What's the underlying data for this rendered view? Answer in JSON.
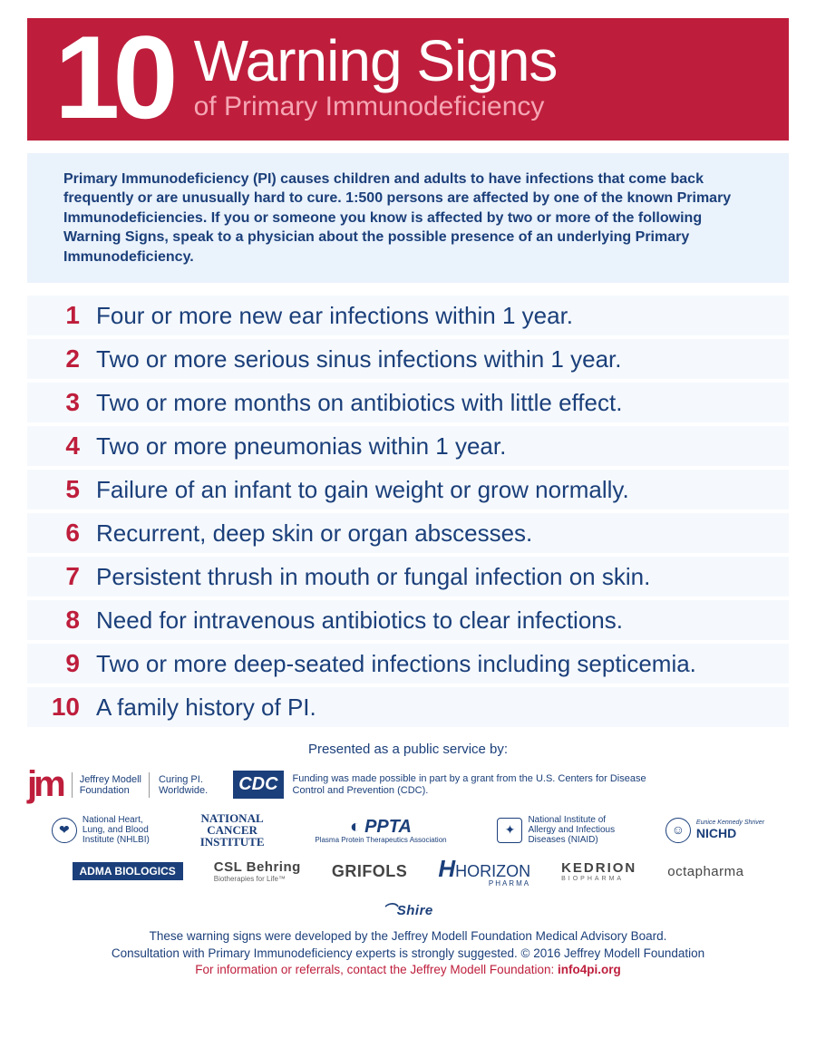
{
  "header": {
    "number": "10",
    "title": "Warning Signs",
    "subtitle": "of Primary Immunodeficiency"
  },
  "intro": "Primary Immunodeficiency (PI) causes children and adults to have infections that come back frequently or are unusually hard to cure. 1:500 persons are affected by one of the known Primary Immunodeficiencies. If you or someone you know is affected by two or more of the following Warning Signs, speak to a physician about the possible presence of an underlying Primary Immunodeficiency.",
  "items": [
    {
      "n": "1",
      "t": "Four or more new ear infections within 1 year."
    },
    {
      "n": "2",
      "t": "Two or more serious sinus infections within 1 year."
    },
    {
      "n": "3",
      "t": "Two or more months on antibiotics with little effect."
    },
    {
      "n": "4",
      "t": "Two or more pneumonias within 1 year."
    },
    {
      "n": "5",
      "t": "Failure of an infant to gain weight or grow normally."
    },
    {
      "n": "6",
      "t": "Recurrent, deep skin or organ abscesses."
    },
    {
      "n": "7",
      "t": "Persistent thrush in mouth or fungal infection on skin."
    },
    {
      "n": "8",
      "t": "Need for intravenous antibiotics to clear infections."
    },
    {
      "n": "9",
      "t": "Two or more deep-seated infections including septicemia."
    },
    {
      "n": "10",
      "t": "A family history of PI."
    }
  ],
  "footer": {
    "presented": "Presented as a public service by:",
    "jm": {
      "logo": "jm",
      "name": "Jeffrey Modell\nFoundation",
      "tag": "Curing PI.\nWorldwide."
    },
    "cdc": {
      "logo": "CDC",
      "text": "Funding was made possible in part by a grant from the U.S. Centers for Disease Control and Prevention (CDC)."
    },
    "orgs": {
      "nhlbi": "National Heart,\nLung, and Blood\nInstitute (NHLBI)",
      "nci": "NATIONAL\nCANCER\nINSTITUTE",
      "ppta": "PPTA",
      "ppta_sub": "Plasma Protein Therapeutics Association",
      "niaid": "National Institute of\nAllergy and Infectious\nDiseases (NIAID)",
      "nichd": "NICHD",
      "nichd_sub": "Eunice Kennedy Shriver"
    },
    "sponsors": [
      "ADMA BIOLOGICS",
      "CSL Behring",
      "GRIFOLS",
      "HORIZON",
      "KEDRION",
      "octapharma",
      "Shire"
    ],
    "csl_tag": "Biotherapies for Life™",
    "horizon_sub": "PHARMA",
    "kedrion_sub": "BIOPHARMA",
    "disclaimer1": "These warning signs were developed by the Jeffrey Modell Foundation Medical Advisory Board.",
    "disclaimer2": "Consultation with Primary Immunodeficiency experts is strongly suggested. © 2016 Jeffrey Modell Foundation",
    "contact_pre": "For information or referrals, contact the Jeffrey Modell Foundation: ",
    "contact_link": "info4pi.org"
  },
  "colors": {
    "red": "#be1e3c",
    "blue": "#1b3f7a",
    "lightblue": "#eaf2fb",
    "rowbg": "#f5f9fd",
    "pink": "#f5a6b4",
    "white": "#ffffff"
  }
}
